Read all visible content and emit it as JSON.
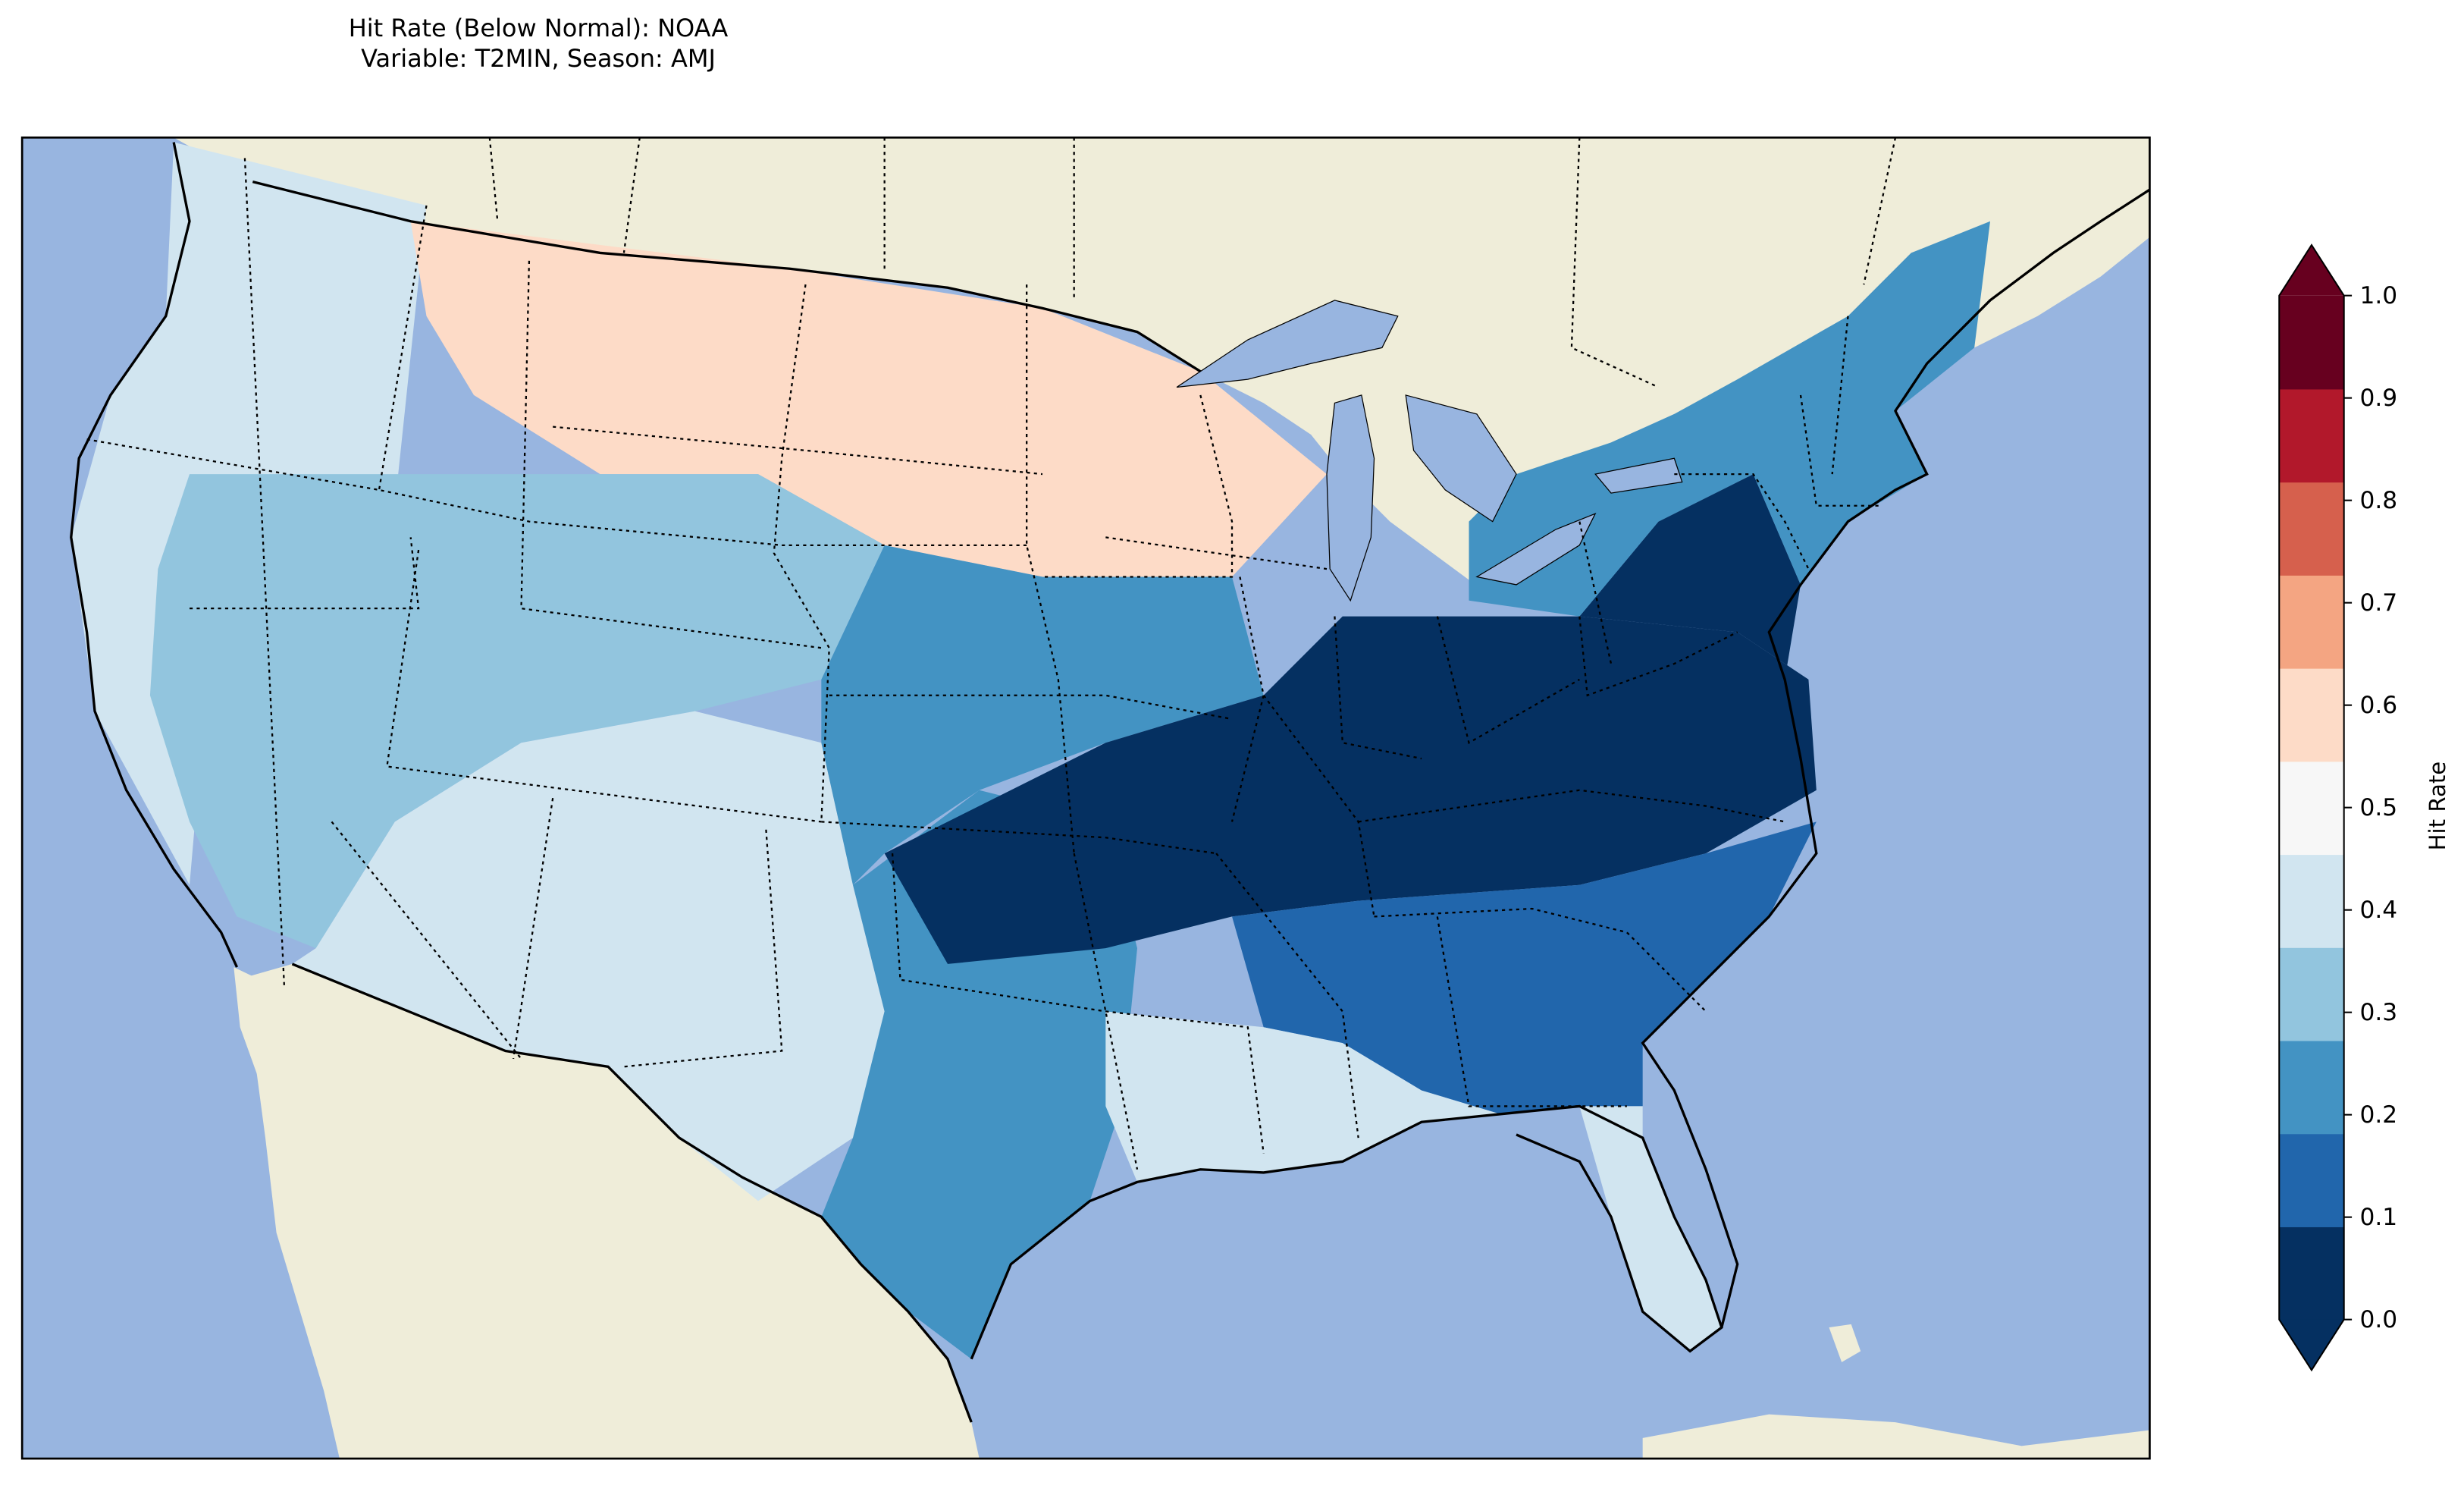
{
  "title": {
    "line1": "Hit Rate (Below Normal): NOAA",
    "line2": "Variable: T2MIN, Season: AMJ"
  },
  "colorbar": {
    "label": "Hit Rate",
    "ticks": [
      "0.0",
      "0.1",
      "0.2",
      "0.3",
      "0.4",
      "0.5",
      "0.6",
      "0.7",
      "0.8",
      "0.9",
      "1.0"
    ],
    "colors": [
      "#053061",
      "#2166ac",
      "#4393c3",
      "#92c5de",
      "#d1e5f0",
      "#f7f7f7",
      "#fddbc7",
      "#f4a582",
      "#d6604d",
      "#b2182b",
      "#67001f"
    ],
    "extend": "both"
  },
  "map": {
    "ocean_color": "#98b5e0",
    "land_color": "#efedd9",
    "region": "Contiguous United States"
  },
  "regions": [
    {
      "name": "west-coast",
      "value": 0.45
    },
    {
      "name": "northern-plains",
      "value": 0.62
    },
    {
      "name": "great-basin",
      "value": 0.32
    },
    {
      "name": "southwest",
      "value": 0.42
    },
    {
      "name": "central-plains",
      "value": 0.28
    },
    {
      "name": "texas",
      "value": 0.22
    },
    {
      "name": "ohio-valley",
      "value": 0.05
    },
    {
      "name": "southeast",
      "value": 0.18
    },
    {
      "name": "mid-atlantic",
      "value": 0.05
    },
    {
      "name": "northeast",
      "value": 0.25
    },
    {
      "name": "gulf-coast",
      "value": 0.42
    },
    {
      "name": "florida",
      "value": 0.45
    }
  ]
}
